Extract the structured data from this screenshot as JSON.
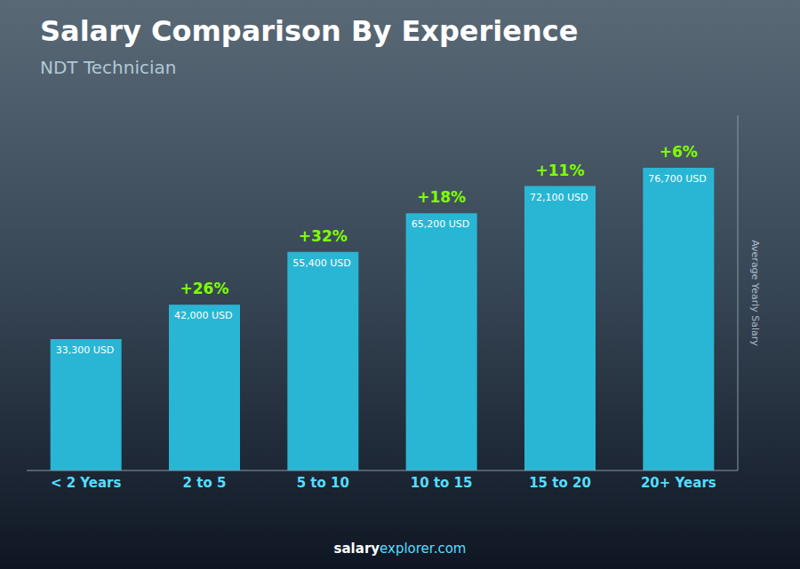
{
  "chart_data": {
    "type": "bar",
    "title": "Salary Comparison By Experience",
    "subtitle": "NDT Technician",
    "categories": [
      "< 2 Years",
      "2 to 5",
      "5 to 10",
      "10 to 15",
      "15 to 20",
      "20+ Years"
    ],
    "values": [
      33300,
      42000,
      55400,
      65200,
      72100,
      76700
    ],
    "value_labels": [
      "33,300 USD",
      "42,000 USD",
      "55,400 USD",
      "65,200 USD",
      "72,100 USD",
      "76,700 USD"
    ],
    "data_labels": true,
    "annotations": [
      "+26%",
      "+32%",
      "+18%",
      "+11%",
      "+6%"
    ],
    "ylabel": "Average Yearly Salary",
    "footer": [
      "salary",
      "explorer.com"
    ],
    "color": "#29b6d4",
    "ylim": [
      0,
      90000
    ],
    "tick_labels": "x",
    "grid": false
  }
}
